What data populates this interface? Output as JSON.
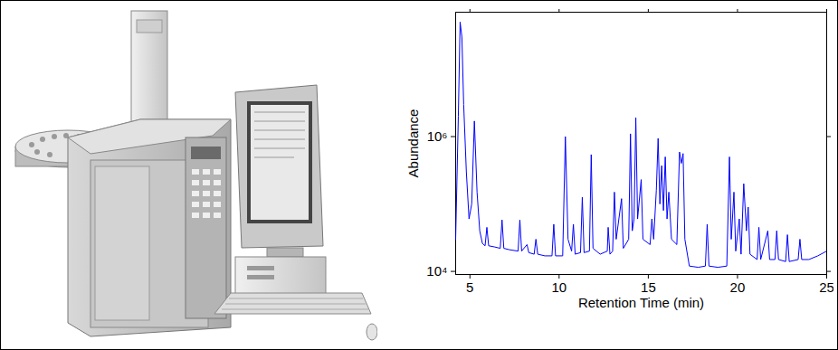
{
  "chart_data": {
    "type": "line",
    "xlabel": "Retention Time (min)",
    "ylabel": "Abundance",
    "log": "y",
    "grid": false,
    "xlim": [
      4.2,
      25
    ],
    "ylim": [
      9000,
      70000000
    ],
    "xticks": [
      5,
      10,
      15,
      20,
      25
    ],
    "yticks": [
      {
        "value": 10000,
        "label": "10⁴"
      },
      {
        "value": 1000000,
        "label": "10⁶"
      }
    ],
    "x": [
      4.2,
      4.35,
      4.45,
      4.55,
      4.65,
      4.8,
      4.95,
      5.1,
      5.25,
      5.4,
      5.55,
      5.7,
      5.85,
      5.95,
      6.05,
      6.4,
      6.7,
      6.8,
      6.9,
      7.2,
      7.7,
      7.8,
      7.9,
      8.2,
      8.3,
      8.6,
      8.7,
      8.8,
      9.2,
      9.6,
      9.7,
      9.8,
      10.2,
      10.35,
      10.5,
      10.7,
      10.8,
      10.9,
      11.2,
      11.3,
      11.4,
      11.7,
      11.8,
      11.9,
      12.3,
      12.7,
      12.75,
      12.85,
      13.0,
      13.1,
      13.2,
      13.5,
      13.6,
      13.9,
      14.0,
      14.1,
      14.2,
      14.3,
      14.4,
      14.6,
      14.7,
      15.1,
      15.2,
      15.3,
      15.45,
      15.55,
      15.65,
      15.75,
      15.85,
      15.95,
      16.05,
      16.15,
      16.3,
      16.6,
      16.75,
      16.85,
      16.95,
      17.05,
      17.3,
      17.8,
      18.2,
      18.3,
      18.4,
      18.9,
      19.4,
      19.55,
      19.65,
      19.8,
      19.9,
      20.1,
      20.2,
      20.35,
      20.5,
      20.6,
      20.7,
      21.1,
      21.2,
      21.3,
      21.7,
      21.8,
      22.1,
      22.2,
      22.3,
      22.7,
      22.8,
      22.9,
      23.4,
      23.5,
      23.6,
      24.0,
      24.5,
      25.0
    ],
    "series": [
      {
        "color": "#0000ff",
        "values": [
          30000,
          2000000,
          50000000,
          30000000,
          3000000,
          300000,
          60000,
          100000,
          1700000,
          150000,
          40000,
          26000,
          24000,
          45000,
          24000,
          23000,
          22000,
          58000,
          22000,
          21000,
          20000,
          58000,
          20000,
          25000,
          19000,
          18000,
          30000,
          18000,
          17000,
          17000,
          50000,
          17000,
          17000,
          1000000,
          30000,
          20000,
          50000,
          18000,
          19000,
          126000,
          19000,
          20000,
          540000,
          22000,
          18000,
          20000,
          45000,
          18000,
          20000,
          150000,
          30000,
          120000,
          22000,
          30000,
          1100000,
          40000,
          60000,
          1900000,
          60000,
          230000,
          30000,
          25000,
          60000,
          30000,
          160000,
          940000,
          100000,
          370000,
          80000,
          500000,
          60000,
          150000,
          30000,
          25000,
          590000,
          400000,
          560000,
          30000,
          12000,
          11500,
          12000,
          50000,
          12000,
          11500,
          12000,
          500000,
          30000,
          150000,
          20000,
          60000,
          18000,
          200000,
          40000,
          90000,
          18000,
          15000,
          45000,
          15000,
          40000,
          15000,
          15000,
          40000,
          15000,
          14000,
          35000,
          14000,
          15000,
          30000,
          15000,
          15000,
          17000,
          20000
        ]
      }
    ]
  }
}
